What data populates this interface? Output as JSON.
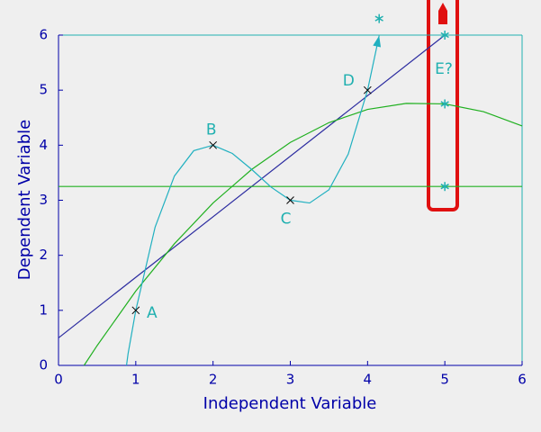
{
  "chart_data": {
    "type": "line",
    "xlabel": "Independent Variable",
    "ylabel": "Dependent Variable",
    "xlim": [
      0,
      6
    ],
    "ylim": [
      0,
      6
    ],
    "xticks": [
      0,
      1,
      2,
      3,
      4,
      5,
      6
    ],
    "yticks": [
      0,
      1,
      2,
      3,
      4,
      5,
      6
    ],
    "axis_color": "#0000a8",
    "frame_color": "#20b0b0",
    "series": [
      {
        "color": "#2c2ca0",
        "x": [
          0,
          5
        ],
        "values": [
          0.5,
          6
        ]
      },
      {
        "color": "#20b020",
        "x": [
          0,
          6
        ],
        "values": [
          3.25,
          3.25
        ]
      },
      {
        "color": "#20b020",
        "x": [
          0.331,
          0.5,
          1,
          1.5,
          2,
          2.5,
          3,
          3.5,
          4,
          4.5,
          5,
          5.5,
          6
        ],
        "values": [
          0,
          0.36,
          1.35,
          2.21,
          2.95,
          3.56,
          4.05,
          4.41,
          4.65,
          4.76,
          4.75,
          4.61,
          4.35
        ]
      },
      {
        "color": "#20b0c0",
        "arrow": true,
        "x": [
          0.88,
          0.9,
          1,
          1.25,
          1.5,
          1.75,
          2,
          2.25,
          2.5,
          2.75,
          3,
          3.25,
          3.5,
          3.75,
          4,
          4.15
        ],
        "values": [
          0,
          0.21,
          1,
          2.51,
          3.44,
          3.9,
          4,
          3.85,
          3.56,
          3.24,
          3,
          2.95,
          3.19,
          3.84,
          5,
          5.99
        ]
      }
    ],
    "points": {
      "color": "#000000",
      "label_color": "#20b0b0",
      "x": [
        1,
        2,
        3,
        4
      ],
      "values": [
        1,
        4,
        3,
        5
      ],
      "labels": [
        "A",
        "B",
        "C",
        "D"
      ]
    },
    "predictions": {
      "color": "#20b0b0",
      "x": [
        5,
        5,
        5,
        4.15
      ],
      "values": [
        6,
        4.75,
        3.25,
        6.3
      ]
    },
    "annotation": "E?"
  }
}
